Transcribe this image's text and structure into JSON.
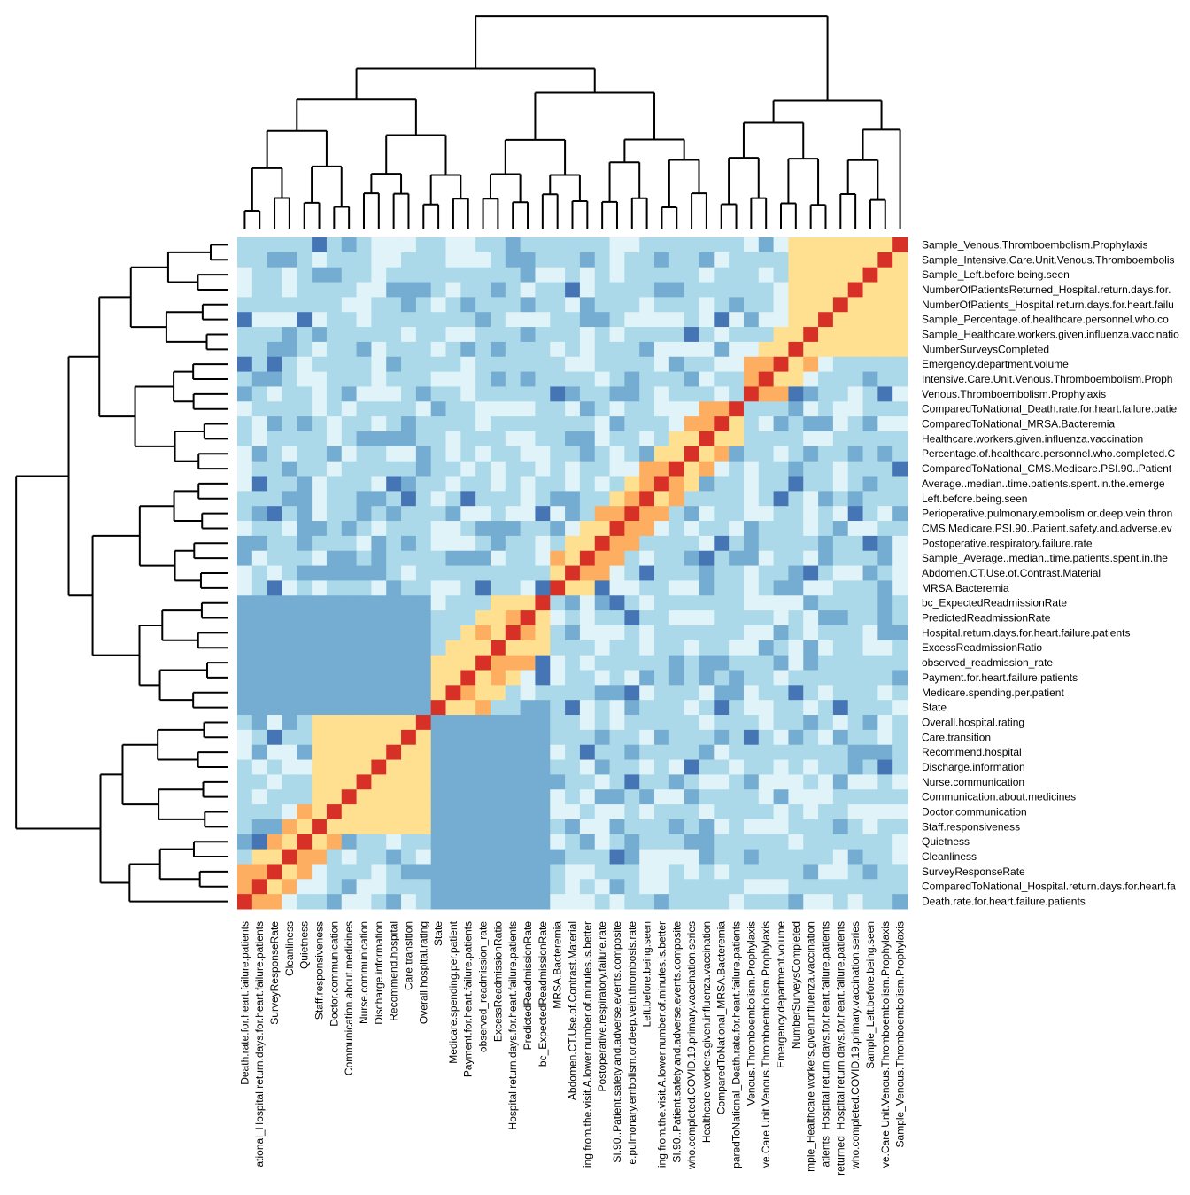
{
  "chart_data": {
    "type": "heatmap",
    "title": "",
    "row_labels": [
      "Sample_Venous.Thromboembolism.Prophylaxis",
      "Sample_Intensive.Care.Unit.Venous.Thromboembolis",
      "Sample_Left.before.being.seen",
      "NumberOfPatientsReturned_Hospital.return.days.for.",
      "NumberOfPatients_Hospital.return.days.for.heart.failu",
      "Sample_Percentage.of.healthcare.personnel.who.co",
      "Sample_Healthcare.workers.given.influenza.vaccinatio",
      "NumberSurveysCompleted",
      "Emergency.department.volume",
      "Intensive.Care.Unit.Venous.Thromboembolism.Proph",
      "Venous.Thromboembolism.Prophylaxis",
      "ComparedToNational_Death.rate.for.heart.failure.patie",
      "ComparedToNational_MRSA.Bacteremia",
      "Healthcare.workers.given.influenza.vaccination",
      "Percentage.of.healthcare.personnel.who.completed.C",
      "ComparedToNational_CMS.Medicare.PSI.90..Patient",
      "Average..median..time.patients.spent.in.the.emerge",
      "Left.before.being.seen",
      "Perioperative.pulmonary.embolism.or.deep.vein.thron",
      "CMS.Medicare.PSI.90..Patient.safety.and.adverse.ev",
      "Postoperative.respiratory.failure.rate",
      "Sample_Average..median..time.patients.spent.in.the",
      "Abdomen.CT.Use.of.Contrast.Material",
      "MRSA.Bacteremia",
      "bc_ExpectedReadmissionRate",
      "PredictedReadmissionRate",
      "Hospital.return.days.for.heart.failure.patients",
      "ExcessReadmissionRatio",
      "observed_readmission_rate",
      "Payment.for.heart.failure.patients",
      "Medicare.spending.per.patient",
      "State",
      "Overall.hospital.rating",
      "Care.transition",
      "Recommend.hospital",
      "Discharge.information",
      "Nurse.communication",
      "Communication.about.medicines",
      "Doctor.communication",
      "Staff.responsiveness",
      "Quietness",
      "Cleanliness",
      "SurveyResponseRate",
      "ComparedToNational_Hospital.return.days.for.heart.fa",
      "Death.rate.for.heart.failure.patients"
    ],
    "col_labels": [
      "Death.rate.for.heart.failure.patients",
      "ational_Hospital.return.days.for.heart.failure.patients",
      "SurveyResponseRate",
      "Cleanliness",
      "Quietness",
      "Staff.responsiveness",
      "Doctor.communication",
      "Communication.about.medicines",
      "Nurse.communication",
      "Discharge.information",
      "Recommend.hospital",
      "Care.transition",
      "Overall.hospital.rating",
      "State",
      "Medicare.spending.per.patient",
      "Payment.for.heart.failure.patients",
      "observed_readmission_rate",
      "ExcessReadmissionRatio",
      "Hospital.return.days.for.heart.failure.patients",
      "PredictedReadmissionRate",
      "bc_ExpectedReadmissionRate",
      "MRSA.Bacteremia",
      "Abdomen.CT.Use.of.Contrast.Material",
      "ing.from.the.visit.A.lower.number.of.minutes.is.better",
      "Postoperative.respiratory.failure.rate",
      "SI.90..Patient.safety.and.adverse.events.composite",
      "e.pulmonary.embolism.or.deep.vein.thrombosis.rate",
      "Left.before.being.seen",
      "ing.from.the.visit.A.lower.number.of.minutes.is.better",
      "SI.90..Patient.safety.and.adverse.events.composite",
      "who.completed.COVID.19.primary.vaccination.series",
      "Healthcare.workers.given.influenza.vaccination",
      "ComparedToNational_MRSA.Bacteremia",
      "paredToNational_Death.rate.for.heart.failure.patients",
      "Venous.Thromboembolism.Prophylaxis",
      "ve.Care.Unit.Venous.Thromboembolism.Prophylaxis",
      "Emergency.department.volume",
      "NumberSurveysCompleted",
      "mple_Healthcare.workers.given.influenza.vaccination",
      "atients_Hospital.return.days.for.heart.failure.patients",
      "returned_Hospital.return.days.for.heart.failure.patients",
      "who.completed.COVID.19.primary.vaccination.series",
      "Sample_Left.before.being.seen",
      "ve.Care.Unit.Venous.Thromboembolism.Prophylaxis",
      "Sample_Venous.Thromboembolism.Prophylaxis"
    ],
    "color_levels": {
      "very_negative": "#4575b4",
      "negative": "#74add1",
      "slightly_negative": "#abd9e9",
      "near_zero": "#e0f3f8",
      "positive": "#fee090",
      "more_positive": "#fdae61",
      "strong_positive": "#f46d43",
      "perfect": "#d73027"
    },
    "color_scale": [
      {
        "v": -1.0,
        "c": "#4575b4"
      },
      {
        "v": -0.5,
        "c": "#74add1"
      },
      {
        "v": -0.25,
        "c": "#abd9e9"
      },
      {
        "v": 0.0,
        "c": "#e0f3f8"
      },
      {
        "v": 0.25,
        "c": "#fee090"
      },
      {
        "v": 0.5,
        "c": "#fdae61"
      },
      {
        "v": 0.75,
        "c": "#f46d43"
      },
      {
        "v": 1.0,
        "c": "#d73027"
      }
    ],
    "legend": "none",
    "grid": false
  }
}
